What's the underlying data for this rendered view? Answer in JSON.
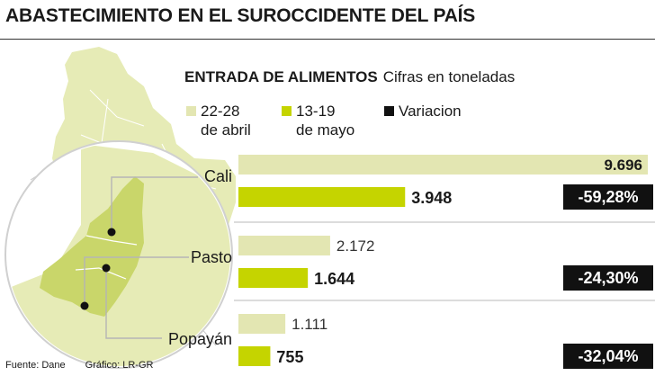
{
  "title": "ABASTECIMIENTO EN EL SUROCCIDENTE DEL PAÍS",
  "subtitle": "ENTRADA DE ALIMENTOS",
  "unit_note": "Cifras en toneladas",
  "legend": [
    {
      "label": "22-28\nde abril",
      "color": "#e3e6b2"
    },
    {
      "label": "13-19\nde mayo",
      "color": "#c5d400"
    },
    {
      "label": "Variacion",
      "color": "#111111"
    }
  ],
  "chart_data": {
    "type": "bar",
    "orientation": "horizontal",
    "categories": [
      "Cali",
      "Pasto",
      "Popayán"
    ],
    "series": [
      {
        "name": "22-28 de abril",
        "values": [
          9696,
          2172,
          1111
        ],
        "labels": [
          "9.696",
          "2.172",
          "1.111"
        ]
      },
      {
        "name": "13-19 de mayo",
        "values": [
          3948,
          1644,
          755
        ],
        "labels": [
          "3.948",
          "1.644",
          "755"
        ]
      }
    ],
    "variation": [
      "-59,28%",
      "-24,30%",
      "-32,04%"
    ],
    "unit": "toneladas",
    "xlim": [
      0,
      9696
    ]
  },
  "colors": {
    "april": "#e3e6b2",
    "may": "#c5d400",
    "map_land": "#e6ebb6",
    "map_region": "#c9d66a",
    "variation_bg": "#111111"
  },
  "footer": {
    "source": "Fuente: Dane",
    "credit": "Gráfico: LR-GR"
  }
}
